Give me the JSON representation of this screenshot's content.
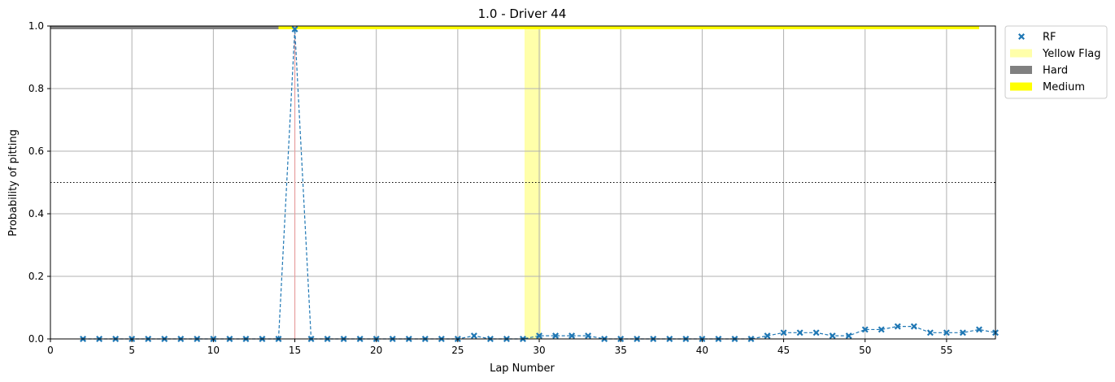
{
  "chart_data": {
    "type": "line",
    "title": "1.0 - Driver 44",
    "xlabel": "Lap Number",
    "ylabel": "Probability of pitting",
    "xlim": [
      0,
      58
    ],
    "ylim": [
      0,
      1
    ],
    "xticks": [
      0,
      5,
      10,
      15,
      20,
      25,
      30,
      35,
      40,
      45,
      50,
      55
    ],
    "yticks": [
      0.0,
      0.2,
      0.4,
      0.6,
      0.8,
      1.0
    ],
    "grid": true,
    "legend_position": "outside-top-right",
    "threshold": 0.5,
    "pit_lap": 15,
    "series": [
      {
        "name": "RF",
        "color": "#1f77b4",
        "marker": "x",
        "x": [
          2,
          3,
          4,
          5,
          6,
          7,
          8,
          9,
          10,
          11,
          12,
          13,
          14,
          15,
          16,
          17,
          18,
          19,
          20,
          21,
          22,
          23,
          24,
          25,
          26,
          27,
          28,
          29,
          30,
          31,
          32,
          33,
          34,
          35,
          36,
          37,
          38,
          39,
          40,
          41,
          42,
          43,
          44,
          45,
          46,
          47,
          48,
          49,
          50,
          51,
          52,
          53,
          54,
          55,
          56,
          57,
          58
        ],
        "y": [
          0,
          0,
          0,
          0,
          0,
          0,
          0,
          0,
          0,
          0,
          0,
          0,
          0,
          0.99,
          0,
          0,
          0,
          0,
          0,
          0,
          0,
          0,
          0,
          0,
          0.01,
          0,
          0,
          0,
          0.01,
          0.01,
          0.01,
          0.01,
          0,
          0,
          0,
          0,
          0,
          0,
          0,
          0,
          0,
          0,
          0.01,
          0.02,
          0.02,
          0.02,
          0.01,
          0.01,
          0.03,
          0.03,
          0.04,
          0.04,
          0.02,
          0.02,
          0.02,
          0.03,
          0.02
        ]
      }
    ],
    "yellow_flags": [
      {
        "start": 29.1,
        "end": 30.1
      }
    ],
    "tyre_stints": [
      {
        "compound": "Hard",
        "start": 0,
        "end": 14,
        "color": "#808080"
      },
      {
        "compound": "Medium",
        "start": 14,
        "end": 57,
        "color": "#ffff00"
      }
    ],
    "legend": [
      {
        "label": "RF",
        "kind": "marker",
        "color": "#1f77b4"
      },
      {
        "label": "Yellow Flag",
        "kind": "patch",
        "color": "#ffffaa"
      },
      {
        "label": "Hard",
        "kind": "patch",
        "color": "#808080"
      },
      {
        "label": "Medium",
        "kind": "patch",
        "color": "#ffff00"
      }
    ]
  }
}
